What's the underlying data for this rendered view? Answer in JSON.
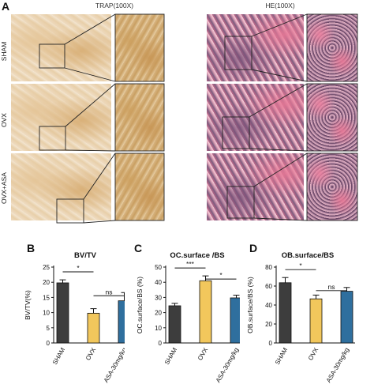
{
  "panel_a": {
    "label": "A",
    "col_titles": [
      "TRAP(100X)",
      "HE(100X)"
    ],
    "row_labels": [
      "SHAM",
      "OVX",
      "OVX+ASA"
    ]
  },
  "chart_data": [
    {
      "panel": "B",
      "type": "bar",
      "title": "BV/TV",
      "ylabel": "BV/TV(%)",
      "categories": [
        "SHAM",
        "OVX",
        "ASA-30mg/kg"
      ],
      "values": [
        19.8,
        9.8,
        13.9
      ],
      "errors": [
        1.0,
        1.5,
        2.7
      ],
      "colors": [
        "#3d3d3d",
        "#f2c75c",
        "#2f6f9e"
      ],
      "ylim": [
        0,
        25
      ],
      "yticks": [
        0,
        5,
        10,
        15,
        20,
        25
      ],
      "comparisons": [
        {
          "between": [
            "SHAM",
            "OVX"
          ],
          "label": "*"
        },
        {
          "between": [
            "OVX",
            "ASA-30mg/kg"
          ],
          "label": "ns"
        }
      ]
    },
    {
      "panel": "C",
      "type": "bar",
      "title": "OC.surface /BS",
      "ylabel": "OC.surface/BS (%)",
      "categories": [
        "SHAM",
        "OVX",
        "ASA-30mg/kg"
      ],
      "values": [
        24.5,
        41.0,
        29.7
      ],
      "errors": [
        1.6,
        3.2,
        1.8
      ],
      "colors": [
        "#3d3d3d",
        "#f2c75c",
        "#2f6f9e"
      ],
      "ylim": [
        0,
        50
      ],
      "yticks": [
        0,
        10,
        20,
        30,
        40,
        50
      ],
      "comparisons": [
        {
          "between": [
            "SHAM",
            "OVX"
          ],
          "label": "***"
        },
        {
          "between": [
            "OVX",
            "ASA-30mg/kg"
          ],
          "label": "*"
        }
      ]
    },
    {
      "panel": "D",
      "type": "bar",
      "title": "OB.surface/BS",
      "ylabel": "OB.surface/BS (%)",
      "categories": [
        "SHAM",
        "OVX",
        "ASA-30mg/kg"
      ],
      "values": [
        63.5,
        46.5,
        54.5
      ],
      "errors": [
        5.5,
        4.0,
        4.0
      ],
      "colors": [
        "#3d3d3d",
        "#f2c75c",
        "#2f6f9e"
      ],
      "ylim": [
        0,
        80
      ],
      "yticks": [
        0,
        20,
        40,
        60,
        80
      ],
      "comparisons": [
        {
          "between": [
            "SHAM",
            "OVX"
          ],
          "label": "*"
        },
        {
          "between": [
            "OVX",
            "ASA-30mg/kg"
          ],
          "label": "ns"
        }
      ]
    }
  ]
}
